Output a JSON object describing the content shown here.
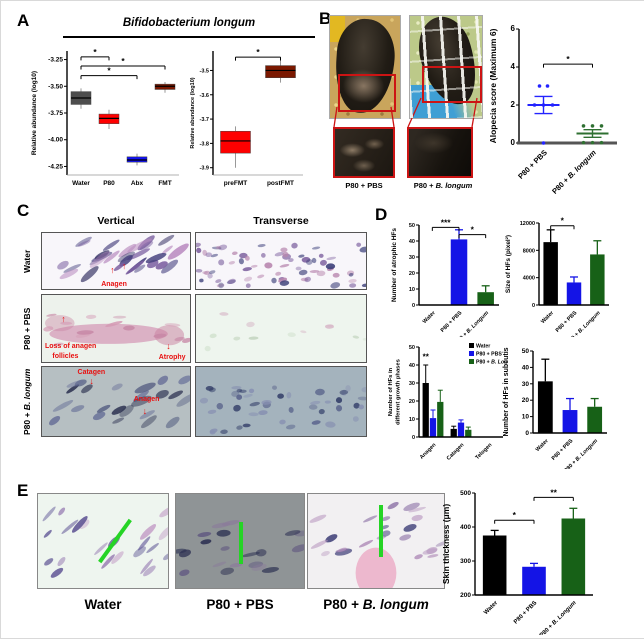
{
  "figure": {
    "panel_a": {
      "label": "A",
      "title": "Bifidobacterium longum"
    },
    "panel_b": {
      "label": "B",
      "photo_labels": [
        {
          "pre": "P80 + PBS",
          "it": ""
        },
        {
          "pre": "P80 + ",
          "it": "B. longum"
        }
      ]
    },
    "panel_c": {
      "label": "C",
      "col_headers": [
        "Vertical",
        "Transverse"
      ],
      "row_labels": [
        {
          "pre": "Water",
          "it": ""
        },
        {
          "pre": "P80 + PBS",
          "it": ""
        },
        {
          "pre": "P80 + ",
          "it": "B. longum"
        }
      ],
      "ann_water": [
        "Anagen"
      ],
      "ann_pbs": [
        "Loss of anagen",
        "follicles",
        "Atrophy"
      ],
      "ann_bl": [
        "Catagen",
        "Anagen"
      ]
    },
    "panel_d": {
      "label": "D"
    },
    "panel_e": {
      "label": "E",
      "image_labels": [
        {
          "pre": "Water",
          "it": ""
        },
        {
          "pre": "P80 + PBS",
          "it": ""
        },
        {
          "pre": "P80 + ",
          "it": "B. longum"
        }
      ]
    }
  },
  "chart_data": [
    {
      "id": "a_left",
      "type": "box",
      "title": "Bifidobacterium longum",
      "ylabel": "Relative abundance (log10)",
      "ylim": [
        -4.33,
        -3.17
      ],
      "yticks": [
        [
          -3.25,
          "-3.25"
        ],
        [
          -3.5,
          "-3.50"
        ],
        [
          -3.75,
          "-3.75"
        ],
        [
          -4.0,
          "-4.00"
        ],
        [
          -4.25,
          "-4.25"
        ]
      ],
      "categories": [
        "Water",
        "P80",
        "Abx",
        "FMT"
      ],
      "colors": [
        "#4d4d4d",
        "#fe0000",
        "#1212ee",
        "#7b1800"
      ],
      "boxes": [
        {
          "lo": -3.71,
          "q1": -3.67,
          "med": -3.61,
          "q3": -3.55,
          "hi": -3.52
        },
        {
          "lo": -3.9,
          "q1": -3.85,
          "med": -3.8,
          "q3": -3.76,
          "hi": -3.72
        },
        {
          "lo": -4.24,
          "q1": -4.21,
          "med": -4.19,
          "q3": -4.16,
          "hi": -4.13
        },
        {
          "lo": -3.56,
          "q1": -3.53,
          "med": -3.5,
          "q3": -3.48,
          "hi": -3.46
        }
      ],
      "sig": [
        {
          "a": 0,
          "b": 1,
          "label": "*",
          "y": -3.225
        },
        {
          "a": 0,
          "b": 3,
          "label": "*",
          "y": -3.31
        },
        {
          "a": 0,
          "b": 2,
          "label": "*",
          "y": -3.4
        }
      ]
    },
    {
      "id": "a_right",
      "type": "box",
      "ylabel": "Relative abundance (log10)",
      "ylim": [
        -3.93,
        -3.42
      ],
      "yticks": [
        [
          -3.5,
          "-3.5"
        ],
        [
          -3.6,
          "-3.6"
        ],
        [
          -3.7,
          "-3.7"
        ],
        [
          -3.8,
          "-3.8"
        ],
        [
          -3.9,
          "-3.9"
        ]
      ],
      "categories": [
        "preFMT",
        "postFMT"
      ],
      "colors": [
        "#fe0000",
        "#7b1800"
      ],
      "boxes": [
        {
          "lo": -3.9,
          "q1": -3.84,
          "med": -3.79,
          "q3": -3.75,
          "hi": -3.73
        },
        {
          "lo": -3.55,
          "q1": -3.53,
          "med": -3.5,
          "q3": -3.48,
          "hi": -3.46
        }
      ],
      "sig": [
        {
          "a": 0,
          "b": 1,
          "label": "*",
          "y": -3.445
        }
      ]
    },
    {
      "id": "b_scatter",
      "type": "scatter",
      "ylabel": "Alopecia score (Maximum 6)",
      "ylim": [
        0,
        6
      ],
      "yticks": [
        [
          0,
          "0"
        ],
        [
          2,
          "2"
        ],
        [
          4,
          "4"
        ],
        [
          6,
          "6"
        ]
      ],
      "groups": [
        {
          "label": "P80 + PBS",
          "color": "#2323ff",
          "mean": 2,
          "sem": 0.45,
          "points": [
            [
              -4,
              3
            ],
            [
              4,
              3
            ],
            [
              -9,
              2
            ],
            [
              0,
              2
            ],
            [
              9,
              2
            ],
            [
              0,
              0
            ]
          ]
        },
        {
          "label": "P80 + B. longum",
          "color": "#2f7032",
          "mean": 0.5,
          "sem": 0.2,
          "points": [
            [
              -9,
              0.9
            ],
            [
              0,
              0.9
            ],
            [
              9,
              0.9
            ],
            [
              -9,
              0.02
            ],
            [
              0,
              0.02
            ],
            [
              9,
              0.02
            ]
          ]
        }
      ],
      "sig": [
        {
          "a": 0,
          "b": 1,
          "label": "*",
          "y": 4.15
        }
      ]
    },
    {
      "id": "d1",
      "type": "bar",
      "ylabel": [
        "Number of atrophic HFs"
      ],
      "ylim": [
        0,
        50
      ],
      "yticks": [
        [
          0,
          "0"
        ],
        [
          10,
          "10"
        ],
        [
          20,
          "20"
        ],
        [
          30,
          "30"
        ],
        [
          40,
          "40"
        ],
        [
          50,
          "50"
        ]
      ],
      "categories": [
        "Water",
        "P80 + PBS",
        "P80 + B. Longum"
      ],
      "colors": [
        "#000000",
        "#1414e6",
        "#176117"
      ],
      "values": [
        0,
        41,
        8
      ],
      "errors": [
        0,
        6,
        4
      ],
      "sig": [
        {
          "a": 0,
          "b": 1,
          "label": "***",
          "y": 48.5
        },
        {
          "a": 1,
          "b": 2,
          "label": "*",
          "y": 44
        }
      ]
    },
    {
      "id": "d2",
      "type": "bar",
      "ylabel": [
        "Size of HFs (pixel²)"
      ],
      "ylim": [
        0,
        12000
      ],
      "yticks": [
        [
          0,
          "0"
        ],
        [
          4000,
          "4000"
        ],
        [
          8000,
          "8000"
        ],
        [
          12000,
          "12000"
        ]
      ],
      "categories": [
        "Water",
        "P80 + PBS",
        "P80 + B. Longum"
      ],
      "colors": [
        "#000000",
        "#1414e6",
        "#176117"
      ],
      "values": [
        9200,
        3300,
        7400
      ],
      "errors": [
        1800,
        800,
        2000
      ],
      "sig": [
        {
          "a": 0,
          "b": 1,
          "label": "*",
          "y": 11600
        }
      ]
    },
    {
      "id": "d3",
      "type": "groupedbar",
      "ylabel": [
        "Number of HFs in",
        "different growth phases"
      ],
      "ylim": [
        0,
        50
      ],
      "yticks": [
        [
          0,
          "0"
        ],
        [
          10,
          "10"
        ],
        [
          20,
          "20"
        ],
        [
          30,
          "30"
        ],
        [
          40,
          "40"
        ],
        [
          50,
          "50"
        ]
      ],
      "categories": [
        "Anagen",
        "Catagen",
        "Telogen"
      ],
      "series": [
        {
          "name": "Water",
          "color": "#000000",
          "values": [
            30,
            4.5,
            0
          ],
          "errors": [
            10,
            1.5,
            0
          ]
        },
        {
          "name": "P80 + PBS",
          "color": "#1414e6",
          "values": [
            10.5,
            8,
            0
          ],
          "errors": [
            4.5,
            1.5,
            0
          ]
        },
        {
          "name": "P80 + B. Longum",
          "color": "#176117",
          "values": [
            19.5,
            4,
            0
          ],
          "errors": [
            6.5,
            1.5,
            0
          ]
        }
      ],
      "annotations": [
        {
          "text": "**",
          "cat": 0,
          "series": 0,
          "y": 43
        }
      ],
      "legend": true
    },
    {
      "id": "d4",
      "type": "bar",
      "ylabel": [
        "Number of HFs in subcutis"
      ],
      "ylim": [
        0,
        50
      ],
      "yticks": [
        [
          0,
          "0"
        ],
        [
          10,
          "10"
        ],
        [
          20,
          "20"
        ],
        [
          30,
          "30"
        ],
        [
          40,
          "40"
        ],
        [
          50,
          "50"
        ]
      ],
      "categories": [
        "Water",
        "P80 + PBS",
        "P80 + B. Longum"
      ],
      "colors": [
        "#000000",
        "#1414e6",
        "#176117"
      ],
      "values": [
        31.5,
        14,
        16
      ],
      "errors": [
        13.5,
        7,
        5
      ],
      "sig": []
    },
    {
      "id": "e_thickness",
      "type": "bar",
      "ylabel": [
        "Skin thickness (μm)"
      ],
      "ylim": [
        200,
        500
      ],
      "yticks": [
        [
          200,
          "200"
        ],
        [
          300,
          "300"
        ],
        [
          400,
          "400"
        ],
        [
          500,
          "500"
        ]
      ],
      "categories": [
        "Water",
        "P80 + PBS",
        "P80 + B. Longum"
      ],
      "colors": [
        "#000000",
        "#1414e6",
        "#176117"
      ],
      "values": [
        375,
        283,
        425
      ],
      "errors": [
        15,
        10,
        30
      ],
      "sig": [
        {
          "a": 0,
          "b": 1,
          "label": "*",
          "y": 420
        },
        {
          "a": 1,
          "b": 2,
          "label": "**",
          "y": 487
        }
      ]
    }
  ]
}
